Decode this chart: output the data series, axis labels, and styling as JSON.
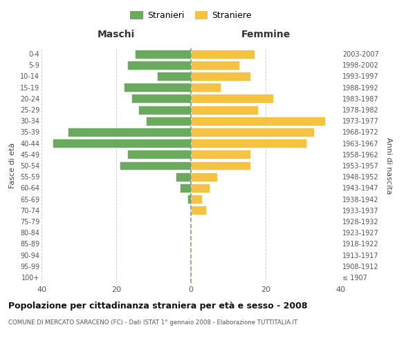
{
  "age_groups": [
    "100+",
    "95-99",
    "90-94",
    "85-89",
    "80-84",
    "75-79",
    "70-74",
    "65-69",
    "60-64",
    "55-59",
    "50-54",
    "45-49",
    "40-44",
    "35-39",
    "30-34",
    "25-29",
    "20-24",
    "15-19",
    "10-14",
    "5-9",
    "0-4"
  ],
  "birth_years": [
    "≤ 1907",
    "1908-1912",
    "1913-1917",
    "1918-1922",
    "1923-1927",
    "1928-1932",
    "1933-1937",
    "1938-1942",
    "1943-1947",
    "1948-1952",
    "1953-1957",
    "1958-1962",
    "1963-1967",
    "1968-1972",
    "1973-1977",
    "1978-1982",
    "1983-1987",
    "1988-1992",
    "1993-1997",
    "1998-2002",
    "2003-2007"
  ],
  "males": [
    0,
    0,
    0,
    0,
    0,
    0,
    0,
    1,
    3,
    4,
    19,
    17,
    37,
    33,
    12,
    14,
    16,
    18,
    9,
    17,
    15
  ],
  "females": [
    0,
    0,
    0,
    0,
    0,
    0,
    4,
    3,
    5,
    7,
    16,
    16,
    31,
    33,
    36,
    18,
    22,
    8,
    16,
    13,
    17
  ],
  "male_color": "#6aaa5e",
  "female_color": "#f5c242",
  "background_color": "#ffffff",
  "grid_color": "#cccccc",
  "title": "Popolazione per cittadinanza straniera per età e sesso - 2008",
  "subtitle": "COMUNE DI MERCATO SARACENO (FC) - Dati ISTAT 1° gennaio 2008 - Elaborazione TUTTITALIA.IT",
  "xlabel_left": "Maschi",
  "xlabel_right": "Femmine",
  "ylabel_left": "Fasce di età",
  "ylabel_right": "Anni di nascita",
  "legend_male": "Stranieri",
  "legend_female": "Straniere",
  "xlim": 40,
  "center_line_color": "#999966"
}
